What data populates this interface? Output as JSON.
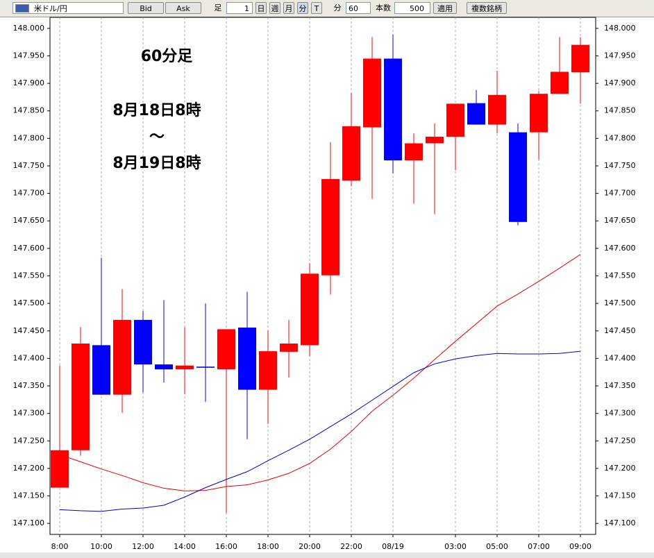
{
  "toolbar": {
    "pair": "米ドル/円",
    "bid": "Bid",
    "ask": "Ask",
    "ashi": "足",
    "count1": "1",
    "day": "日",
    "week": "週",
    "month": "月",
    "minute": "分",
    "tick": "T",
    "minute2": "分",
    "interval": "60",
    "bars_label": "本数",
    "bars": "500",
    "apply": "適用",
    "multi": "複数銘柄"
  },
  "chart_data": {
    "type": "candlestick",
    "annotations": [
      "60分足",
      "8月18日8時",
      "～",
      "8月19日8時"
    ],
    "categories": [
      "8:00",
      null,
      "10:00",
      null,
      "12:00",
      null,
      "14:00",
      null,
      "16:00",
      null,
      "18:00",
      null,
      "20:00",
      null,
      "22:00",
      null,
      "08/19",
      null,
      null,
      "03:00",
      null,
      "05:00",
      null,
      "07:00",
      null,
      "09:00"
    ],
    "open": [
      147.165,
      147.233,
      147.424,
      147.334,
      147.47,
      147.389,
      147.38,
      147.385,
      147.38,
      147.456,
      147.343,
      147.412,
      147.424,
      147.551,
      147.723,
      147.82,
      147.945,
      147.76,
      147.791,
      147.803,
      147.864,
      147.825,
      147.811,
      147.811,
      147.881,
      147.92
    ],
    "high": [
      147.387,
      147.457,
      147.583,
      147.526,
      147.486,
      147.506,
      147.456,
      147.5,
      147.453,
      147.521,
      147.451,
      147.47,
      147.573,
      147.793,
      147.883,
      147.984,
      147.989,
      147.809,
      147.827,
      147.863,
      147.888,
      147.923,
      147.827,
      147.886,
      147.984,
      147.984
    ],
    "low": [
      147.165,
      147.223,
      147.334,
      147.301,
      147.338,
      147.356,
      147.335,
      147.321,
      147.119,
      147.253,
      147.281,
      147.365,
      147.404,
      147.516,
      147.713,
      147.69,
      147.736,
      147.681,
      147.662,
      147.742,
      147.825,
      147.809,
      147.642,
      147.761,
      147.881,
      147.863
    ],
    "close": [
      147.233,
      147.427,
      147.334,
      147.47,
      147.389,
      147.38,
      147.387,
      147.383,
      147.453,
      147.343,
      147.413,
      147.427,
      147.554,
      147.726,
      147.822,
      147.945,
      147.76,
      147.791,
      147.803,
      147.863,
      147.825,
      147.879,
      147.648,
      147.881,
      147.921,
      147.97
    ],
    "up_color": "#ff0000",
    "down_color": "#0000ff",
    "lines": [
      {
        "color": "#e00000",
        "values": [
          147.225,
          147.212,
          147.199,
          147.187,
          147.174,
          147.164,
          147.159,
          147.16,
          147.167,
          147.17,
          147.179,
          147.191,
          147.209,
          147.235,
          147.267,
          147.304,
          147.333,
          147.364,
          147.398,
          147.431,
          147.463,
          147.495,
          147.517,
          147.54,
          147.564,
          147.589
        ]
      },
      {
        "color": "#0000c0",
        "values": [
          147.125,
          147.123,
          147.122,
          147.126,
          147.128,
          147.133,
          147.148,
          147.165,
          147.18,
          147.194,
          147.214,
          147.233,
          147.253,
          147.276,
          147.299,
          147.324,
          147.349,
          147.374,
          147.39,
          147.399,
          147.405,
          147.409,
          147.408,
          147.408,
          147.409,
          147.413
        ]
      }
    ],
    "ylim": [
      147.08,
      148.02
    ],
    "yticks": [
      {
        "value": 147.1,
        "label": "147.100"
      },
      {
        "value": 147.15,
        "label": "147.150"
      },
      {
        "value": 147.2,
        "label": "147.200"
      },
      {
        "value": 147.25,
        "label": "147.250"
      },
      {
        "value": 147.3,
        "label": "147.300"
      },
      {
        "value": 147.35,
        "label": "147.350"
      },
      {
        "value": 147.4,
        "label": "147.400"
      },
      {
        "value": 147.45,
        "label": "147.450"
      },
      {
        "value": 147.5,
        "label": "147.500"
      },
      {
        "value": 147.55,
        "label": "147.550"
      },
      {
        "value": 147.6,
        "label": "147.600"
      },
      {
        "value": 147.65,
        "label": "147.650"
      },
      {
        "value": 147.7,
        "label": "147.700"
      },
      {
        "value": 147.75,
        "label": "147.750"
      },
      {
        "value": 147.8,
        "label": "147.800"
      },
      {
        "value": 147.85,
        "label": "147.850"
      },
      {
        "value": 147.9,
        "label": "147.900"
      },
      {
        "value": 147.95,
        "label": "147.950"
      },
      {
        "value": 148.0,
        "label": "148.000"
      }
    ],
    "grid": true
  }
}
